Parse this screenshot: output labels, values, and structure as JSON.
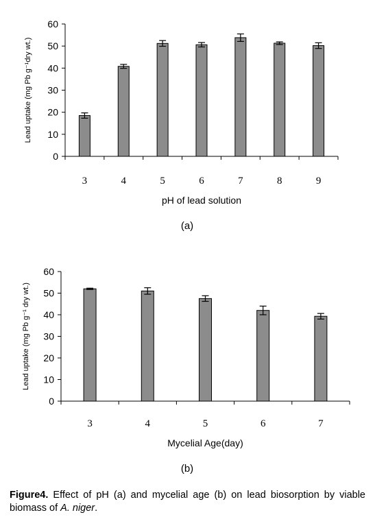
{
  "chart_data": [
    {
      "type": "bar",
      "panel_label": "(a)",
      "categories": [
        "3",
        "4",
        "5",
        "6",
        "7",
        "8",
        "9"
      ],
      "values": [
        18.5,
        40.8,
        51.2,
        50.6,
        53.8,
        51.3,
        50.2
      ],
      "errors": [
        1.2,
        0.9,
        1.3,
        1.0,
        1.7,
        0.6,
        1.3
      ],
      "xlabel": "pH of lead solution",
      "ylabel": "Lead uptake (mg Pb g⁻¹dry wt.)",
      "ylim": [
        0,
        60
      ],
      "yticks": [
        "0",
        "10",
        "20",
        "30",
        "40",
        "50",
        "60"
      ],
      "bar_color": "#8c8c8c",
      "grid": false
    },
    {
      "type": "bar",
      "panel_label": "(b)",
      "categories": [
        "3",
        "4",
        "5",
        "6",
        "7"
      ],
      "values": [
        52.0,
        51.0,
        47.5,
        42.0,
        39.3
      ],
      "errors": [
        0.3,
        1.5,
        1.3,
        2.0,
        1.3
      ],
      "xlabel": "Mycelial Age(day)",
      "ylabel": "Lead uptake (mg Pb g⁻¹ dry wt.)",
      "ylim": [
        0,
        60
      ],
      "yticks": [
        "0",
        "10",
        "20",
        "30",
        "40",
        "50",
        "60"
      ],
      "bar_color": "#8c8c8c",
      "grid": false
    }
  ],
  "caption": {
    "label": "Figure4.",
    "text_before": " Effect of pH (a) and mycelial age (b) on lead biosorption by viable biomass of ",
    "species": "A. niger",
    "text_after": "."
  }
}
